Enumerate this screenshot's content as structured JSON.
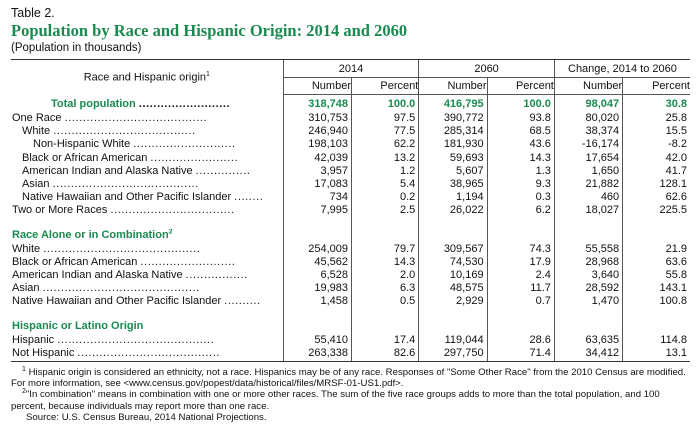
{
  "table_label": "Table 2.",
  "title": "Population by Race and Hispanic Origin: 2014 and 2060",
  "subtitle": "(Population in thousands)",
  "header": {
    "row_label": "Race and Hispanic origin",
    "row_label_sup": "1",
    "groups": [
      "2014",
      "2060",
      "Change, 2014 to 2060"
    ],
    "columns": [
      "Number",
      "Percent",
      "Number",
      "Percent",
      "Number",
      "Percent"
    ]
  },
  "total": {
    "label": "Total population",
    "dots": ".........................",
    "values": [
      "318,748",
      "100.0",
      "416,795",
      "100.0",
      "98,047",
      "30.8"
    ]
  },
  "rows_race": [
    {
      "label": "One Race",
      "dots": ".......................................",
      "values": [
        "310,753",
        "97.5",
        "390,772",
        "93.8",
        "80,020",
        "25.8"
      ]
    },
    {
      "label": "White",
      "dots": ".......................................",
      "values": [
        "246,940",
        "77.5",
        "285,314",
        "68.5",
        "38,374",
        "15.5"
      ]
    },
    {
      "label": "Non-Hispanic White",
      "dots": "............................",
      "values": [
        "198,103",
        "62.2",
        "181,930",
        "43.6",
        "-16,174",
        "-8.2"
      ]
    },
    {
      "label": "Black or African American",
      "dots": "........................",
      "values": [
        "42,039",
        "13.2",
        "59,693",
        "14.3",
        "17,654",
        "42.0"
      ]
    },
    {
      "label": "American Indian and Alaska Native",
      "dots": "...............",
      "values": [
        "3,957",
        "1.2",
        "5,607",
        "1.3",
        "1,650",
        "41.7"
      ]
    },
    {
      "label": "Asian",
      "dots": "........................................",
      "values": [
        "17,083",
        "5.4",
        "38,965",
        "9.3",
        "21,882",
        "128.1"
      ]
    },
    {
      "label": "Native Hawaiian and Other Pacific Islander",
      "dots": "........",
      "values": [
        "734",
        "0.2",
        "1,194",
        "0.3",
        "460",
        "62.6"
      ]
    },
    {
      "label": "Two or More Races",
      "dots": "..................................",
      "values": [
        "7,995",
        "2.5",
        "26,022",
        "6.2",
        "18,027",
        "225.5"
      ]
    }
  ],
  "section_combo": {
    "label": "Race Alone or in Combination",
    "sup": "2"
  },
  "rows_combo": [
    {
      "label": "White",
      "dots": "...........................................",
      "values": [
        "254,009",
        "79.7",
        "309,567",
        "74.3",
        "55,558",
        "21.9"
      ]
    },
    {
      "label": "Black or African American",
      "dots": "..........................",
      "values": [
        "45,562",
        "14.3",
        "74,530",
        "17.9",
        "28,968",
        "63.6"
      ]
    },
    {
      "label": "American Indian and Alaska Native",
      "dots": ".................",
      "values": [
        "6,528",
        "2.0",
        "10,169",
        "2.4",
        "3,640",
        "55.8"
      ]
    },
    {
      "label": "Asian",
      "dots": "...........................................",
      "values": [
        "19,983",
        "6.3",
        "48,575",
        "11.7",
        "28,592",
        "143.1"
      ]
    },
    {
      "label": "Native Hawaiian and Other Pacific Islander",
      "dots": "..........",
      "values": [
        "1,458",
        "0.5",
        "2,929",
        "0.7",
        "1,470",
        "100.8"
      ]
    }
  ],
  "section_hisp": {
    "label": "Hispanic or Latino Origin"
  },
  "rows_hisp": [
    {
      "label": "Hispanic",
      "dots": "...........................................",
      "values": [
        "55,410",
        "17.4",
        "119,044",
        "28.6",
        "63,635",
        "114.8"
      ]
    },
    {
      "label": "Not Hispanic",
      "dots": ".......................................",
      "values": [
        "263,338",
        "82.6",
        "297,750",
        "71.4",
        "34,412",
        "13.1"
      ]
    }
  ],
  "notes": {
    "note1_mark": "1",
    "note1": "Hispanic origin is considered an ethnicity, not a race. Hispanics may be of any race. Responses of \"Some Other Race\" from the 2010 Census are modified. For more information, see <www.census.gov/popest/data/historical/files/MRSF-01-US1.pdf>.",
    "note2_mark": "2",
    "note2": "\"In combination\" means in combination with one or more other races. The sum of the five race groups adds to more than the total population, and 100 percent, because individuals may report more than one race.",
    "source": "Source: U.S. Census Bureau, 2014 National Projections."
  }
}
